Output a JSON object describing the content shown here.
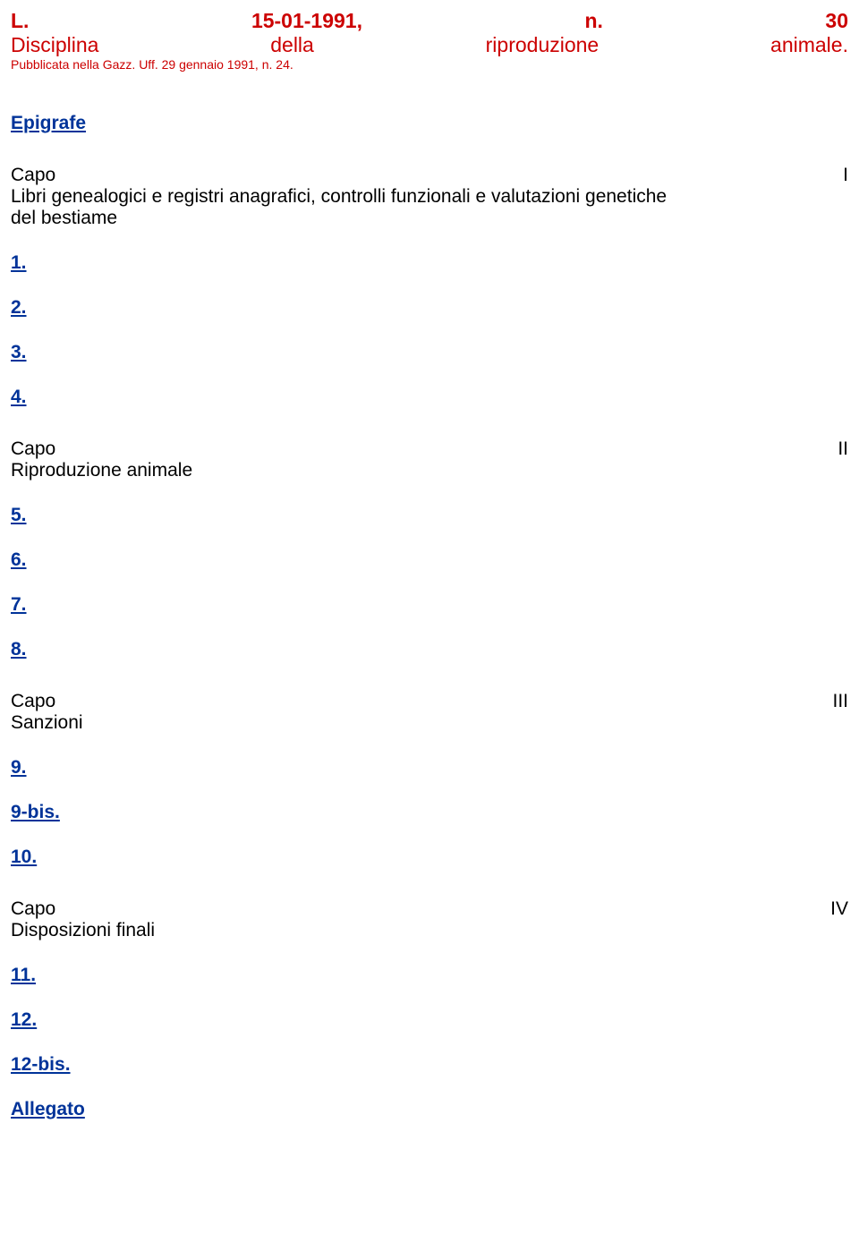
{
  "colors": {
    "red": "#cc0000",
    "blue": "#003399",
    "black": "#000000",
    "background": "#ffffff"
  },
  "header": {
    "line1_left": "L.",
    "line1_mid": "15-01-1991,",
    "line1_n": "n.",
    "line1_num": "30",
    "line2_a": "Disciplina",
    "line2_b": "della",
    "line2_c": "riproduzione",
    "line2_d": "animale.",
    "pub": "Pubblicata nella Gazz. Uff. 29 gennaio 1991, n. 24."
  },
  "epigrafe": "Epigrafe",
  "capo1": {
    "left": "Capo",
    "right": "I",
    "sub1": "Libri genealogici e registri anagrafici, controlli funzionali e valutazioni genetiche",
    "sub2": "del bestiame"
  },
  "links1": {
    "l1": "1.",
    "l2": "2.",
    "l3": "3.",
    "l4": "4."
  },
  "capo2": {
    "left": "Capo",
    "right": "II",
    "sub": "Riproduzione animale"
  },
  "links2": {
    "l5": "5.",
    "l6": "6.",
    "l7": "7.",
    "l8": "8."
  },
  "capo3": {
    "left": "Capo",
    "right": "III",
    "sub": "Sanzioni"
  },
  "links3": {
    "l9": "9.",
    "l9bis": "9-bis.",
    "l10": "10."
  },
  "capo4": {
    "left": "Capo",
    "right": "IV",
    "sub": "Disposizioni finali"
  },
  "links4": {
    "l11": "11.",
    "l12": "12.",
    "l12bis": "12-bis.",
    "allegato": "Allegato"
  }
}
